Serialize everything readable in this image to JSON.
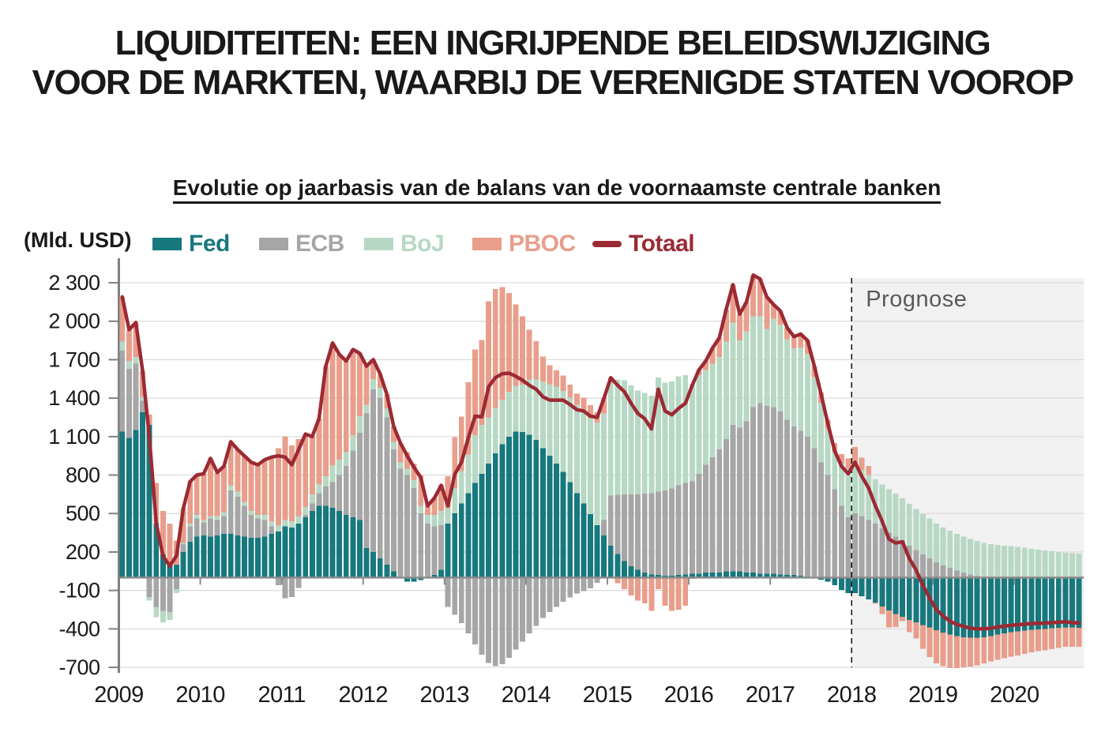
{
  "title": {
    "line1": "LIQUIDITEITEN: EEN INGRIJPENDE BELEIDSWIJZIGING",
    "line2": "VOOR DE MARKTEN, WAARBIJ DE VERENIGDE STATEN VOOROP"
  },
  "subtitle": "Evolutie op jaarbasis van de balans van de voornaamste centrale banken",
  "unit_label": "(Mld. USD)",
  "prognose_label": "Prognose",
  "colors": {
    "fed": "#17787d",
    "ecb": "#a6a6a6",
    "boj": "#b7d8c4",
    "pboc": "#e89e8b",
    "totaal": "#9c2a33",
    "grid": "#d9d9d9",
    "axis": "#808080",
    "zero_line": "#8c8c8c",
    "prognose_bg": "#f1f1f1",
    "prognose_text": "#595959",
    "text": "#191919"
  },
  "legend": [
    {
      "id": "fed",
      "label": "Fed",
      "type": "box",
      "x": 193
    },
    {
      "id": "ecb",
      "label": "ECB",
      "type": "box",
      "x": 328
    },
    {
      "id": "boj",
      "label": "BoJ",
      "type": "box",
      "x": 461
    },
    {
      "id": "pboc",
      "label": "PBOC",
      "type": "box",
      "x": 598
    },
    {
      "id": "totaal",
      "label": "Totaal",
      "type": "line",
      "x": 750
    }
  ],
  "chart_data": {
    "type": "bar",
    "subtype": "stacked-monthly-bars-with-total-line",
    "title": "Evolutie op jaarbasis van de balans van de voornaamste centrale banken",
    "ylabel": "(Mld. USD)",
    "ylim": [
      -700,
      2300
    ],
    "y_ticks": [
      {
        "value": 2300,
        "label": "2 300"
      },
      {
        "value": 2000,
        "label": "2 000"
      },
      {
        "value": 1700,
        "label": "1 700"
      },
      {
        "value": 1400,
        "label": "1 400"
      },
      {
        "value": 1100,
        "label": "1 100"
      },
      {
        "value": 800,
        "label": "800"
      },
      {
        "value": 500,
        "label": "500"
      },
      {
        "value": 200,
        "label": "200"
      },
      {
        "value": -100,
        "label": "-100"
      },
      {
        "value": -400,
        "label": "-400"
      },
      {
        "value": -700,
        "label": "-700"
      }
    ],
    "x_years": [
      "2009",
      "2010",
      "2011",
      "2012",
      "2013",
      "2014",
      "2015",
      "2016",
      "2017",
      "2018",
      "2019",
      "2020"
    ],
    "start_month": "2009-01",
    "end_month": "2020-10",
    "n_months": 142,
    "forecast_start_month_index": 108,
    "grid": true,
    "legend_position": "top",
    "series": [
      {
        "name": "Fed",
        "color": "#17787d",
        "values": [
          1140,
          1090,
          1150,
          1290,
          1190,
          420,
          180,
          120,
          100,
          200,
          280,
          320,
          330,
          320,
          330,
          340,
          340,
          330,
          320,
          310,
          310,
          320,
          340,
          360,
          400,
          390,
          420,
          470,
          520,
          560,
          560,
          545,
          520,
          490,
          470,
          450,
          230,
          200,
          150,
          100,
          50,
          0,
          -30,
          -30,
          -20,
          0,
          20,
          60,
          420,
          500,
          580,
          660,
          740,
          810,
          890,
          970,
          1040,
          1100,
          1140,
          1135,
          1115,
          1075,
          1010,
          950,
          890,
          825,
          745,
          660,
          580,
          495,
          410,
          330,
          250,
          185,
          130,
          90,
          60,
          40,
          25,
          20,
          15,
          15,
          20,
          25,
          30,
          30,
          40,
          40,
          40,
          50,
          50,
          50,
          40,
          40,
          30,
          30,
          30,
          25,
          20,
          20,
          15,
          10,
          0,
          -15,
          -30,
          -60,
          -95,
          -120,
          -120,
          -145,
          -170,
          -195,
          -225,
          -255,
          -285,
          -305,
          -330,
          -350,
          -370,
          -390,
          -410,
          -430,
          -445,
          -455,
          -465,
          -470,
          -470,
          -465,
          -455,
          -445,
          -435,
          -425,
          -418,
          -412,
          -408,
          -404,
          -400,
          -396,
          -392,
          -390,
          -390,
          -392
        ]
      },
      {
        "name": "ECB",
        "color": "#a6a6a6",
        "values": [
          630,
          540,
          520,
          90,
          -150,
          -230,
          -260,
          -270,
          -90,
          60,
          120,
          140,
          100,
          140,
          120,
          140,
          340,
          300,
          240,
          180,
          150,
          130,
          60,
          -60,
          -160,
          -150,
          -80,
          20,
          60,
          100,
          150,
          200,
          280,
          380,
          520,
          680,
          1050,
          1270,
          1250,
          1150,
          950,
          850,
          800,
          700,
          500,
          420,
          380,
          350,
          -230,
          -290,
          -355,
          -435,
          -520,
          -600,
          -665,
          -690,
          -675,
          -625,
          -560,
          -500,
          -435,
          -375,
          -315,
          -270,
          -230,
          -190,
          -155,
          -125,
          -105,
          -85,
          -40,
          120,
          390,
          460,
          520,
          560,
          590,
          615,
          635,
          650,
          665,
          680,
          700,
          715,
          720,
          780,
          840,
          900,
          960,
          1030,
          1140,
          1120,
          1180,
          1290,
          1330,
          1310,
          1300,
          1270,
          1210,
          1160,
          1130,
          1090,
          1010,
          900,
          800,
          690,
          560,
          470,
          500,
          480,
          450,
          420,
          385,
          350,
          320,
          290,
          250,
          215,
          180,
          150,
          120,
          95,
          75,
          55,
          40,
          25,
          15,
          5,
          0,
          0,
          0,
          0,
          0,
          0,
          0,
          0,
          0,
          0,
          0,
          0,
          0,
          0
        ]
      },
      {
        "name": "BoJ",
        "color": "#b7d8c4",
        "values": [
          70,
          60,
          50,
          30,
          -30,
          -80,
          -90,
          -60,
          -30,
          10,
          20,
          30,
          20,
          20,
          30,
          30,
          40,
          40,
          30,
          30,
          30,
          40,
          40,
          50,
          50,
          50,
          60,
          60,
          70,
          70,
          80,
          130,
          120,
          110,
          120,
          130,
          70,
          80,
          80,
          70,
          60,
          50,
          50,
          60,
          60,
          70,
          90,
          110,
          120,
          200,
          250,
          300,
          370,
          380,
          360,
          355,
          345,
          350,
          355,
          370,
          430,
          470,
          520,
          560,
          600,
          630,
          660,
          690,
          720,
          750,
          800,
          830,
          880,
          900,
          890,
          850,
          810,
          785,
          760,
          890,
          840,
          835,
          850,
          840,
          760,
          770,
          740,
          730,
          720,
          760,
          800,
          680,
          700,
          710,
          680,
          600,
          690,
          680,
          630,
          610,
          650,
          645,
          555,
          465,
          360,
          290,
          330,
          380,
          375,
          360,
          350,
          345,
          340,
          340,
          335,
          330,
          325,
          320,
          315,
          310,
          300,
          295,
          290,
          285,
          280,
          275,
          270,
          265,
          260,
          255,
          250,
          245,
          240,
          232,
          225,
          218,
          212,
          206,
          200,
          195,
          190,
          186
        ]
      },
      {
        "name": "PBOC",
        "color": "#e89e8b",
        "values": [
          350,
          245,
          270,
          200,
          80,
          320,
          340,
          300,
          190,
          270,
          330,
          310,
          360,
          450,
          340,
          360,
          340,
          330,
          360,
          380,
          390,
          430,
          500,
          600,
          650,
          590,
          600,
          570,
          450,
          510,
          860,
          950,
          820,
          710,
          670,
          490,
          300,
          150,
          110,
          110,
          120,
          150,
          130,
          130,
          240,
          70,
          130,
          200,
          250,
          395,
          425,
          565,
          670,
          665,
          905,
          925,
          880,
          770,
          635,
          535,
          390,
          300,
          195,
          145,
          125,
          120,
          100,
          85,
          105,
          100,
          80,
          120,
          40,
          -45,
          -90,
          -140,
          -180,
          -200,
          -260,
          -90,
          -220,
          -260,
          -250,
          -220,
          -10,
          40,
          70,
          120,
          150,
          250,
          295,
          205,
          230,
          320,
          290,
          250,
          110,
          105,
          90,
          90,
          105,
          105,
          85,
          80,
          70,
          70,
          75,
          80,
          145,
          95,
          70,
          -10,
          -60,
          -135,
          -100,
          -35,
          -95,
          -125,
          -185,
          -230,
          -260,
          -260,
          -260,
          -250,
          -235,
          -225,
          -215,
          -205,
          -200,
          -195,
          -193,
          -192,
          -190,
          -182,
          -175,
          -170,
          -167,
          -162,
          -156,
          -150,
          -150,
          -149
        ]
      }
    ],
    "line_series": {
      "name": "Totaal",
      "color": "#9c2a33",
      "values": [
        2190,
        1935,
        1990,
        1610,
        1090,
        430,
        170,
        90,
        170,
        540,
        750,
        800,
        810,
        930,
        820,
        870,
        1060,
        1000,
        950,
        900,
        880,
        920,
        940,
        950,
        940,
        880,
        1000,
        1120,
        1100,
        1240,
        1650,
        1830,
        1740,
        1690,
        1780,
        1750,
        1650,
        1700,
        1590,
        1430,
        1180,
        1050,
        950,
        860,
        780,
        560,
        620,
        720,
        560,
        805,
        900,
        1090,
        1260,
        1255,
        1490,
        1560,
        1590,
        1595,
        1570,
        1540,
        1500,
        1470,
        1410,
        1385,
        1385,
        1385,
        1350,
        1310,
        1300,
        1260,
        1250,
        1400,
        1560,
        1500,
        1450,
        1360,
        1280,
        1240,
        1160,
        1470,
        1300,
        1270,
        1320,
        1360,
        1500,
        1620,
        1690,
        1790,
        1870,
        2090,
        2285,
        2055,
        2150,
        2360,
        2330,
        2190,
        2130,
        2080,
        1950,
        1880,
        1900,
        1850,
        1650,
        1430,
        1200,
        990,
        870,
        810,
        900,
        790,
        700,
        560,
        440,
        300,
        270,
        280,
        150,
        60,
        -60,
        -160,
        -250,
        -300,
        -340,
        -365,
        -380,
        -395,
        -400,
        -400,
        -395,
        -385,
        -378,
        -372,
        -368,
        -362,
        -358,
        -356,
        -355,
        -352,
        -348,
        -345,
        -350,
        -355
      ]
    }
  }
}
